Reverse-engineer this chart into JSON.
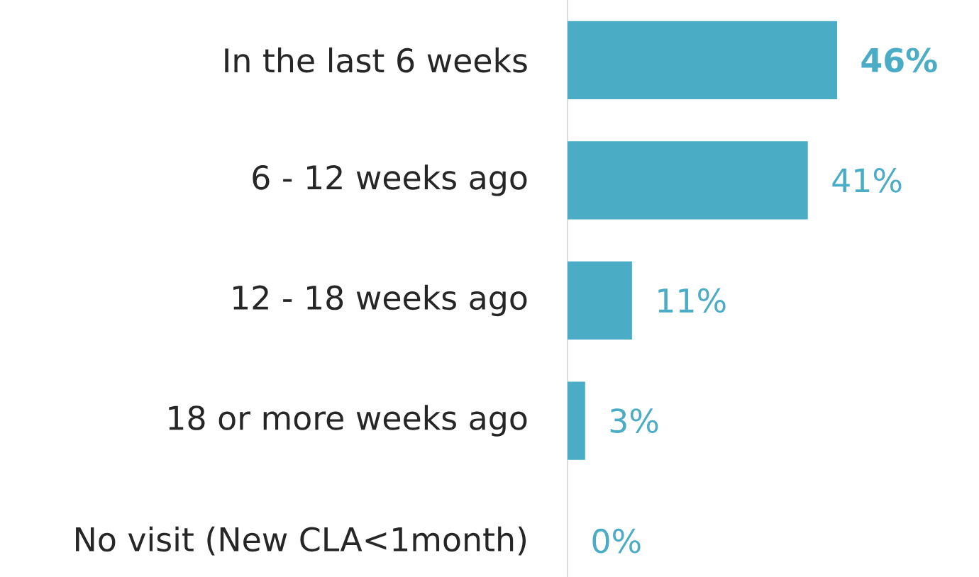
{
  "chart_data": {
    "type": "bar",
    "orientation": "horizontal",
    "color": "#4bacc6",
    "categories": [
      "In the last 6 weeks",
      "6 - 12 weeks ago",
      "12 - 18 weeks ago",
      "18 or more weeks ago",
      "No visit (New CLA<1month)"
    ],
    "values": [
      46,
      41,
      11,
      3,
      0
    ],
    "value_labels": [
      "**46%**",
      "41%",
      "11%",
      "3%",
      "0%"
    ]
  }
}
